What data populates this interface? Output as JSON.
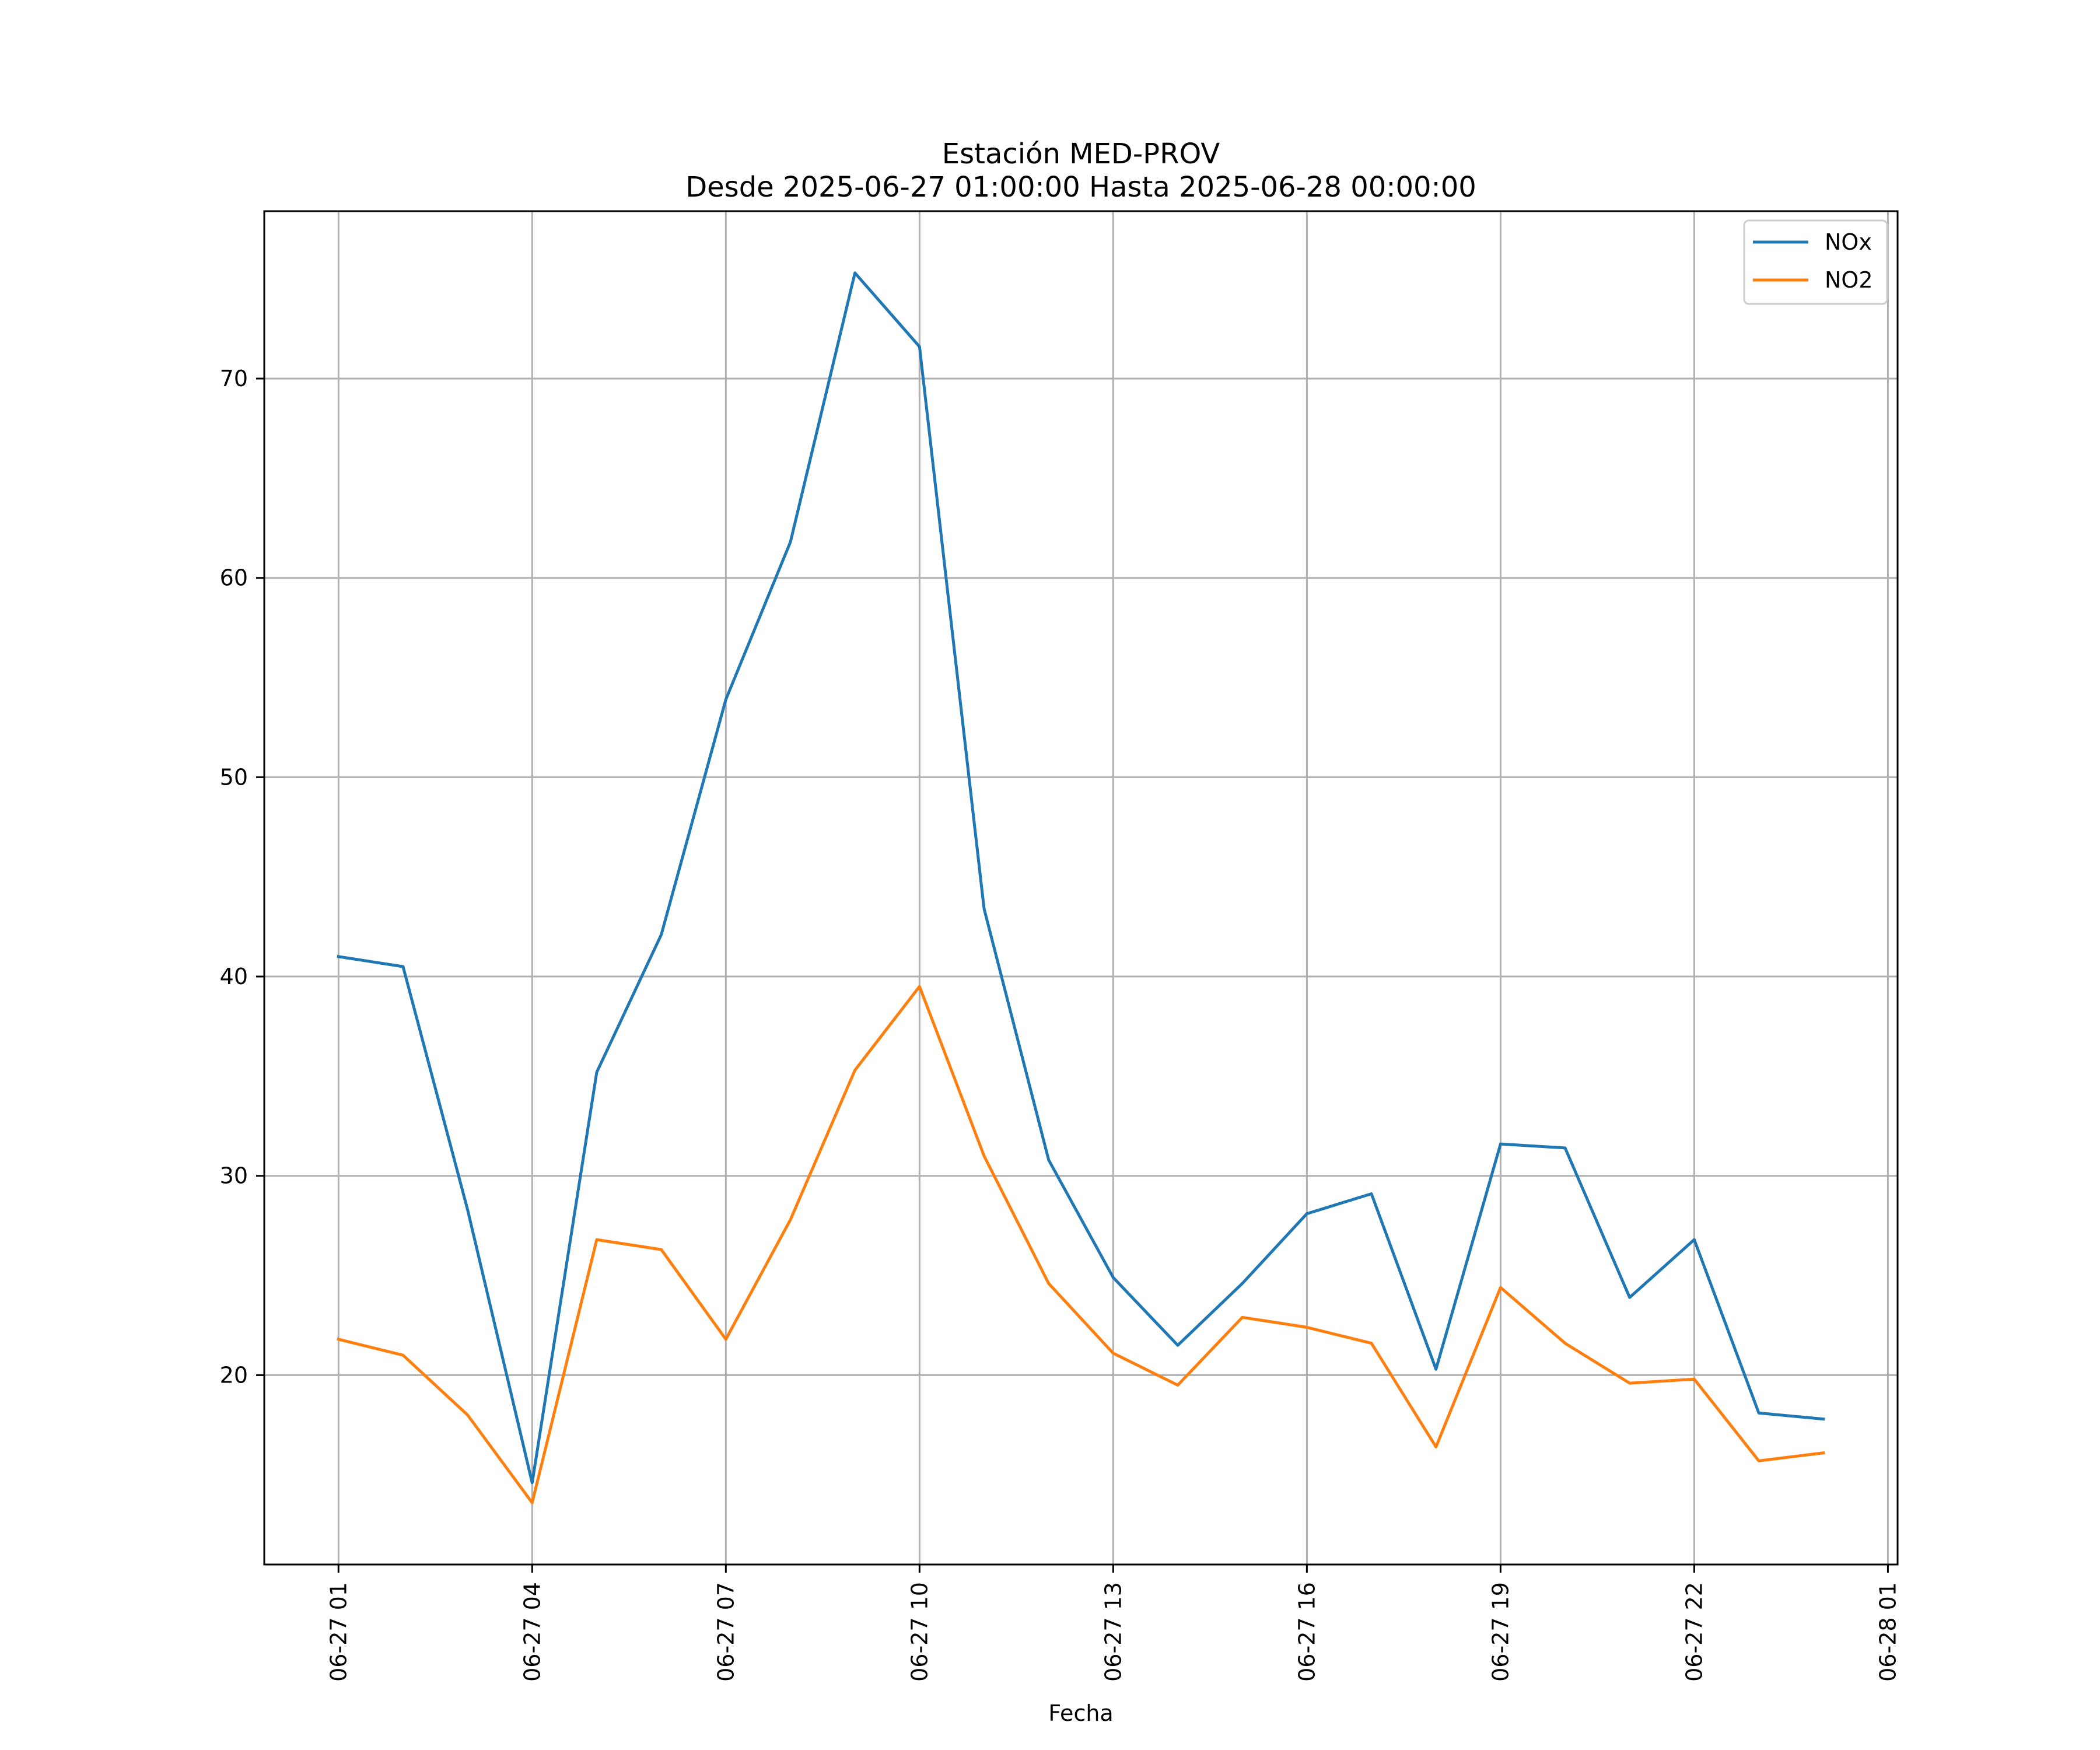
{
  "chart_data": {
    "type": "line",
    "title": "Estación MED-PROV",
    "subtitle": "Desde 2025-06-27 01:00:00 Hasta 2025-06-28 00:00:00",
    "xlabel": "Fecha",
    "ylabel": "",
    "x": [
      "2025-06-27 01:00",
      "2025-06-27 02:00",
      "2025-06-27 03:00",
      "2025-06-27 04:00",
      "2025-06-27 05:00",
      "2025-06-27 06:00",
      "2025-06-27 07:00",
      "2025-06-27 08:00",
      "2025-06-27 09:00",
      "2025-06-27 10:00",
      "2025-06-27 11:00",
      "2025-06-27 12:00",
      "2025-06-27 13:00",
      "2025-06-27 14:00",
      "2025-06-27 15:00",
      "2025-06-27 16:00",
      "2025-06-27 17:00",
      "2025-06-27 18:00",
      "2025-06-27 19:00",
      "2025-06-27 20:00",
      "2025-06-27 21:00",
      "2025-06-27 22:00",
      "2025-06-27 23:00",
      "2025-06-28 00:00"
    ],
    "series": [
      {
        "name": "NOx",
        "color": "#1f77b4",
        "values": [
          41.0,
          40.5,
          28.3,
          14.6,
          35.2,
          42.1,
          53.9,
          61.8,
          75.3,
          71.6,
          43.4,
          30.8,
          24.9,
          21.5,
          24.6,
          28.1,
          29.1,
          20.3,
          31.6,
          31.4,
          23.9,
          26.8,
          18.1,
          17.8
        ]
      },
      {
        "name": "NO2",
        "color": "#ff7f0e",
        "values": [
          21.8,
          21.0,
          18.0,
          13.6,
          26.8,
          26.3,
          21.8,
          27.8,
          35.3,
          39.5,
          31.0,
          24.6,
          21.1,
          19.5,
          22.9,
          22.4,
          21.6,
          16.4,
          24.4,
          21.6,
          19.6,
          19.8,
          15.7,
          16.1
        ]
      }
    ],
    "xlim": [
      "2025-06-26 23:51",
      "2025-06-28 01:09"
    ],
    "ylim": [
      10.5,
      78.4
    ],
    "yticks": [
      20,
      30,
      40,
      50,
      60,
      70
    ],
    "xticks": [
      "2025-06-27 01:00",
      "2025-06-27 04:00",
      "2025-06-27 07:00",
      "2025-06-27 10:00",
      "2025-06-27 13:00",
      "2025-06-27 16:00",
      "2025-06-27 19:00",
      "2025-06-27 22:00",
      "2025-06-28 01:00"
    ],
    "xtick_labels": [
      "06-27 01",
      "06-27 04",
      "06-27 07",
      "06-27 10",
      "06-27 13",
      "06-27 16",
      "06-27 19",
      "06-27 22",
      "06-28 01"
    ],
    "grid": true,
    "legend_position": "top-right"
  }
}
